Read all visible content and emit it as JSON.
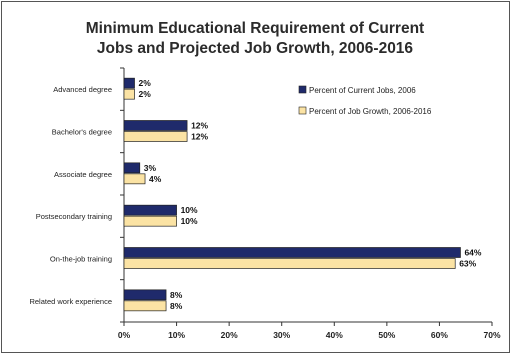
{
  "chart_data": {
    "type": "bar",
    "orientation": "horizontal",
    "title_lines": [
      "Minimum Educational Requirement of Current",
      "Jobs and Projected Job Growth, 2006-2016"
    ],
    "categories": [
      "Advanced degree",
      "Bachelor's degree",
      "Associate degree",
      "Postsecondary training",
      "On-the-job training",
      "Related work experience"
    ],
    "series": [
      {
        "name": "Percent of Current Jobs, 2006",
        "color": "#1f2a6b",
        "values": [
          2,
          12,
          3,
          10,
          64,
          8
        ],
        "labels": [
          "2%",
          "12%",
          "3%",
          "10%",
          "64%",
          "8%"
        ]
      },
      {
        "name": "Percent of Job Growth, 2006-2016",
        "color": "#fbe3a4",
        "values": [
          2,
          12,
          4,
          10,
          63,
          8
        ],
        "labels": [
          "2%",
          "12%",
          "4%",
          "10%",
          "63%",
          "8%"
        ]
      }
    ],
    "x_ticks": [
      "0%",
      "10%",
      "20%",
      "30%",
      "40%",
      "50%",
      "60%",
      "70%"
    ],
    "xlim": [
      0,
      70
    ],
    "legend_position": "right"
  }
}
